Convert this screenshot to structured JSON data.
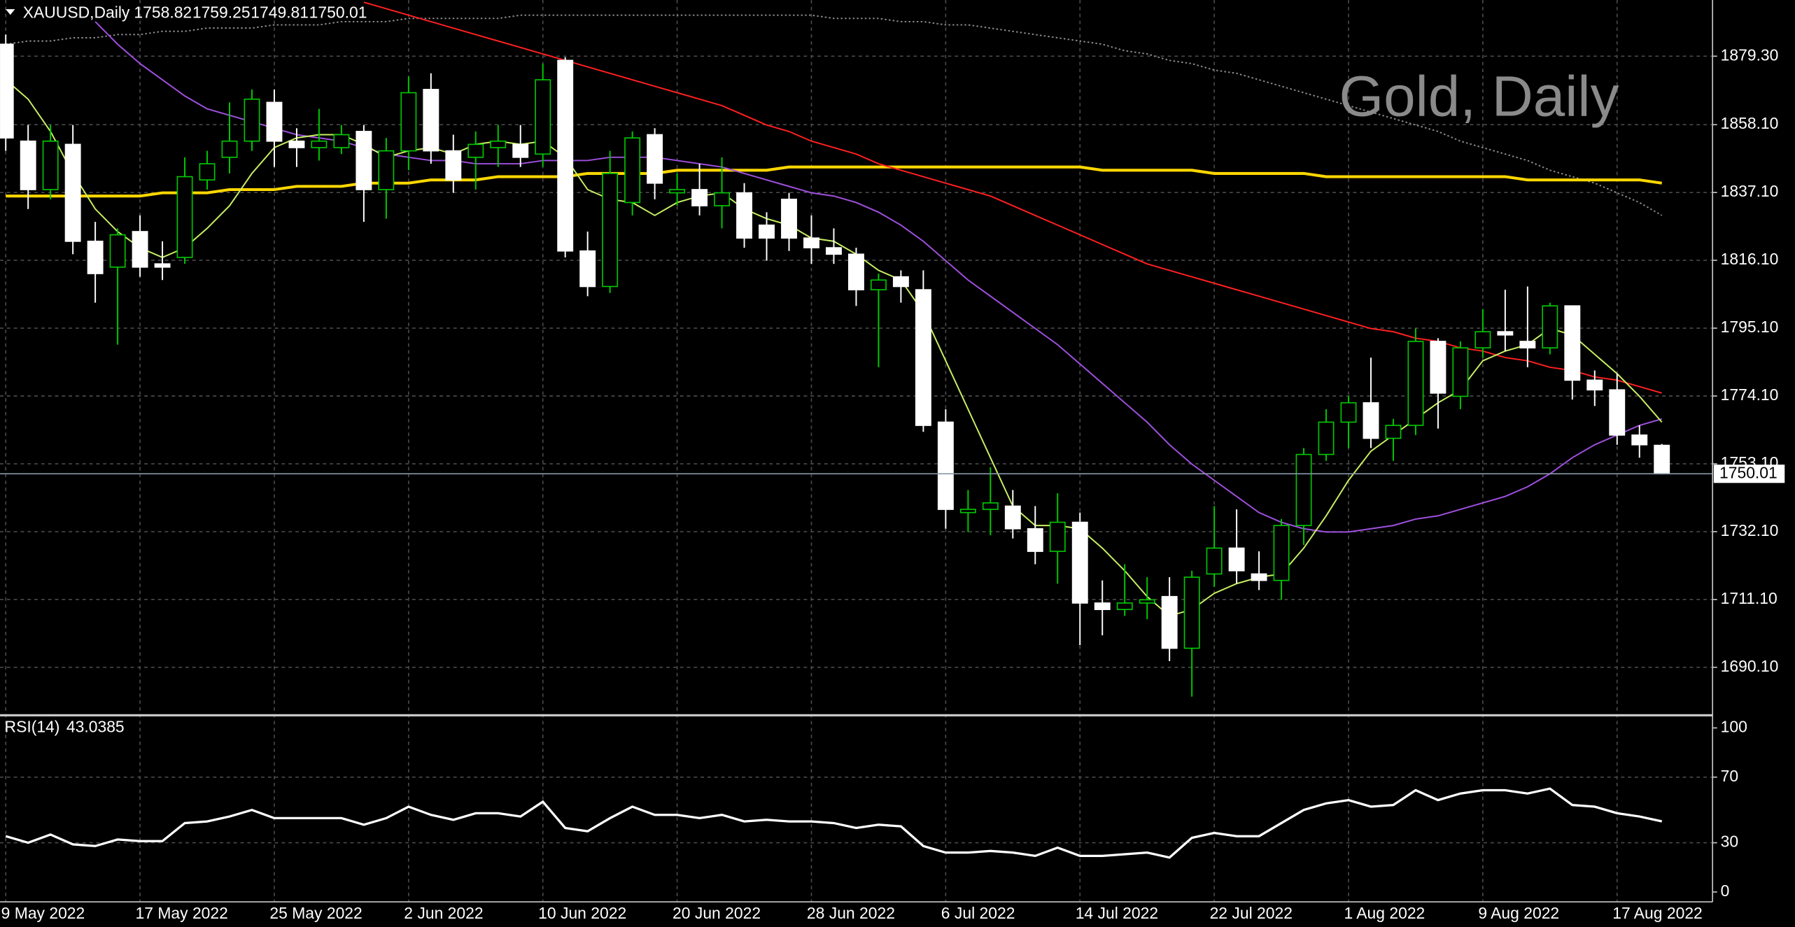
{
  "chart_data": [
    {
      "type": "candlestick",
      "title": "Gold, Daily",
      "symbol": "XAUUSD,Daily",
      "categories": [
        "9 May 2022",
        null,
        null,
        null,
        null,
        null,
        "17 May 2022",
        null,
        null,
        null,
        null,
        null,
        "25 May 2022",
        null,
        null,
        null,
        null,
        null,
        "2 Jun 2022",
        null,
        null,
        null,
        null,
        null,
        "10 Jun 2022",
        null,
        null,
        null,
        null,
        null,
        "20 Jun 2022",
        null,
        null,
        null,
        null,
        null,
        "28 Jun 2022",
        null,
        null,
        null,
        null,
        null,
        "6 Jul 2022",
        null,
        null,
        null,
        null,
        null,
        "14 Jul 2022",
        null,
        null,
        null,
        null,
        null,
        "22 Jul 2022",
        null,
        null,
        null,
        null,
        null,
        "1 Aug 2022",
        null,
        null,
        null,
        null,
        null,
        "9 Aug 2022",
        null,
        null,
        null,
        null,
        null,
        "17 Aug 2022",
        null,
        null
      ],
      "open": [
        1883,
        1853,
        1838,
        1852,
        1822,
        1814,
        1825,
        1815,
        1817,
        1841,
        1848,
        1853,
        1865,
        1853,
        1851,
        1851,
        1856,
        1838,
        1850,
        1869,
        1850,
        1848,
        1851,
        1852,
        1849,
        1878,
        1819,
        1808,
        1834,
        1855,
        1837,
        1838,
        1833,
        1837,
        1827,
        1835,
        1823,
        1820,
        1818,
        1807,
        1811,
        1807,
        1766,
        1738,
        1739,
        1740,
        1733,
        1726,
        1735,
        1710,
        1708,
        1710,
        1712,
        1696,
        1719,
        1727,
        1719,
        1717,
        1734,
        1756,
        1766,
        1772,
        1761,
        1765,
        1791,
        1774,
        1789,
        1794,
        1791,
        1789,
        1802,
        1779,
        1776,
        1762,
        1758.82
      ],
      "high": [
        1886,
        1858,
        1858,
        1858,
        1828,
        1826,
        1830,
        1822,
        1848,
        1850,
        1865,
        1869,
        1869,
        1857,
        1863,
        1858,
        1858,
        1854,
        1873,
        1874,
        1855,
        1856,
        1858,
        1858,
        1877,
        1879,
        1825,
        1850,
        1856,
        1857,
        1843,
        1846,
        1848,
        1840,
        1831,
        1837,
        1830,
        1826,
        1820,
        1812,
        1813,
        1813,
        1770,
        1745,
        1752,
        1745,
        1740,
        1744,
        1738,
        1717,
        1722,
        1718,
        1718,
        1720,
        1740,
        1739,
        1726,
        1736,
        1758,
        1770,
        1774,
        1786,
        1767,
        1795,
        1792,
        1791,
        1801,
        1807,
        1808,
        1803,
        1802,
        1782,
        1781,
        1765,
        1759.25
      ],
      "low": [
        1850,
        1832,
        1835,
        1818,
        1803,
        1790,
        1811,
        1810,
        1815,
        1838,
        1843,
        1850,
        1845,
        1845,
        1847,
        1849,
        1828,
        1829,
        1844,
        1846,
        1837,
        1838,
        1845,
        1845,
        1845,
        1817,
        1805,
        1806,
        1830,
        1835,
        1833,
        1830,
        1826,
        1820,
        1816,
        1819,
        1815,
        1815,
        1802,
        1783,
        1803,
        1763,
        1733,
        1732,
        1731,
        1730,
        1722,
        1716,
        1697,
        1700,
        1706,
        1705,
        1692,
        1681,
        1715,
        1716,
        1714,
        1711,
        1728,
        1754,
        1758,
        1758,
        1754,
        1762,
        1764,
        1770,
        1786,
        1788,
        1783,
        1787,
        1773,
        1771,
        1759,
        1755,
        1749.81
      ],
      "close": [
        1854,
        1838,
        1853,
        1822,
        1812,
        1824,
        1814,
        1814,
        1842,
        1846,
        1853,
        1866,
        1853,
        1851,
        1853,
        1855,
        1838,
        1850,
        1868,
        1850,
        1841,
        1852,
        1853,
        1848,
        1872,
        1819,
        1808,
        1843,
        1854,
        1840,
        1838,
        1833,
        1837,
        1823,
        1823,
        1823,
        1820,
        1818,
        1807,
        1810,
        1808,
        1765,
        1739,
        1739,
        1741,
        1733,
        1726,
        1735,
        1710,
        1708,
        1710,
        1711,
        1696,
        1718,
        1727,
        1720,
        1717,
        1734,
        1756,
        1766,
        1772,
        1761,
        1765,
        1791,
        1775,
        1789,
        1794,
        1793,
        1789,
        1802,
        1779,
        1776,
        1762,
        1759,
        1750.01
      ],
      "up_color": "#00c800",
      "down_color": "#ffffff",
      "overlays": [
        {
          "color": "#8c8c8c",
          "style": "dotted",
          "values": [
            1883,
            1884,
            1884,
            1885,
            1885,
            1886,
            1886,
            1887,
            1887,
            1888,
            1888,
            1888,
            1889,
            1889,
            1889,
            1890,
            1890,
            1890,
            1891,
            1891,
            1891,
            1891,
            1891,
            1892,
            1892,
            1892,
            1892,
            1892,
            1892,
            1892,
            1892,
            1892,
            1892,
            1892,
            1892,
            1892,
            1892,
            1891,
            1891,
            1891,
            1890,
            1890,
            1889,
            1889,
            1888,
            1887,
            1886,
            1885,
            1884,
            1883,
            1881,
            1880,
            1878,
            1877,
            1875,
            1874,
            1872,
            1870,
            1868,
            1866,
            1864,
            1862,
            1860,
            1858,
            1856,
            1853,
            1851,
            1849,
            1847,
            1844,
            1842,
            1840,
            1837,
            1834,
            1830
          ]
        },
        {
          "color": "#ffd700",
          "style": "solid",
          "values": [
            1836,
            1836,
            1836,
            1836,
            1836,
            1836,
            1836,
            1837,
            1837,
            1837,
            1838,
            1838,
            1838,
            1839,
            1839,
            1839,
            1840,
            1840,
            1840,
            1841,
            1841,
            1841,
            1842,
            1842,
            1842,
            1842,
            1843,
            1843,
            1843,
            1843,
            1844,
            1844,
            1844,
            1844,
            1844,
            1845,
            1845,
            1845,
            1845,
            1845,
            1845,
            1845,
            1845,
            1845,
            1845,
            1845,
            1845,
            1845,
            1845,
            1844,
            1844,
            1844,
            1844,
            1844,
            1843,
            1843,
            1843,
            1843,
            1843,
            1842,
            1842,
            1842,
            1842,
            1842,
            1842,
            1842,
            1842,
            1842,
            1841,
            1841,
            1841,
            1841,
            1841,
            1841,
            1840
          ]
        },
        {
          "color": "#ff2020",
          "style": "solid",
          "values": [
            null,
            null,
            null,
            null,
            null,
            null,
            null,
            null,
            null,
            null,
            null,
            null,
            null,
            null,
            null,
            null,
            1896,
            1894,
            1892,
            1890,
            1888,
            1886,
            1884,
            1882,
            1880,
            1878,
            1876,
            1874,
            1872,
            1870,
            1868,
            1866,
            1864,
            1861,
            1858,
            1856,
            1853,
            1851,
            1849,
            1846,
            1844,
            1842,
            1840,
            1838,
            1836,
            1833,
            1830,
            1827,
            1824,
            1821,
            1818,
            1815,
            1813,
            1811,
            1809,
            1807,
            1805,
            1803,
            1801,
            1799,
            1797,
            1795,
            1794,
            1792,
            1791,
            1789,
            1788,
            1786,
            1785,
            1783,
            1782,
            1780,
            1779,
            1777,
            1775
          ]
        },
        {
          "color": "#a050e0",
          "style": "solid",
          "values": [
            null,
            null,
            null,
            null,
            1890,
            1883,
            1877,
            1872,
            1867,
            1863,
            1861,
            1859,
            1857,
            1855,
            1854,
            1853,
            1851,
            1849,
            1848,
            1847,
            1847,
            1846,
            1846,
            1846,
            1847,
            1847,
            1847,
            1848,
            1848,
            1848,
            1847,
            1846,
            1845,
            1843,
            1841,
            1839,
            1837,
            1836,
            1834,
            1831,
            1827,
            1822,
            1816,
            1810,
            1805,
            1800,
            1795,
            1790,
            1784,
            1778,
            1772,
            1766,
            1759,
            1753,
            1748,
            1743,
            1738,
            1735,
            1733,
            1732,
            1732,
            1733,
            1734,
            1736,
            1737,
            1739,
            1741,
            1743,
            1746,
            1750,
            1755,
            1759,
            1762,
            1765,
            1767
          ]
        },
        {
          "color": "#c8f064",
          "style": "solid",
          "values": [
            1872,
            1866,
            1856,
            1843,
            1832,
            1825,
            1820,
            1817,
            1820,
            1826,
            1833,
            1843,
            1851,
            1854,
            1855,
            1855,
            1852,
            1848,
            1850,
            1851,
            1849,
            1852,
            1853,
            1852,
            1853,
            1848,
            1838,
            1835,
            1834,
            1830,
            1834,
            1836,
            1837,
            1832,
            1829,
            1827,
            1823,
            1822,
            1818,
            1813,
            1810,
            1800,
            1785,
            1770,
            1755,
            1740,
            1734,
            1734,
            1733,
            1727,
            1720,
            1712,
            1706,
            1708,
            1713,
            1716,
            1718,
            1719,
            1727,
            1737,
            1748,
            1757,
            1762,
            1767,
            1772,
            1776,
            1785,
            1788,
            1790,
            1795,
            1793,
            1787,
            1781,
            1774,
            1766
          ]
        }
      ],
      "ylim": [
        1675.6,
        1896.7
      ],
      "yticks": [
        {
          "value": 1690.1,
          "label": "1690.10"
        },
        {
          "value": 1711.1,
          "label": "1711.10"
        },
        {
          "value": 1732.1,
          "label": "1732.10"
        },
        {
          "value": 1753.1,
          "label": "1753.10"
        },
        {
          "value": 1774.1,
          "label": "1774.10"
        },
        {
          "value": 1795.1,
          "label": "1795.10"
        },
        {
          "value": 1816.1,
          "label": "1816.10"
        },
        {
          "value": 1837.1,
          "label": "1837.10"
        },
        {
          "value": 1858.1,
          "label": "1858.10"
        },
        {
          "value": 1879.3,
          "label": "1879.30"
        }
      ],
      "grid": true
    },
    {
      "type": "line",
      "label": "RSI(14)",
      "color": "#ffffff",
      "values": [
        34,
        30,
        35,
        29,
        28,
        32,
        31,
        31,
        42,
        43,
        46,
        50,
        45,
        45,
        45,
        45,
        41,
        45,
        52,
        47,
        44,
        48,
        48,
        46,
        55,
        39,
        37,
        45,
        52,
        47,
        47,
        45,
        47,
        43,
        44,
        43,
        43,
        42,
        39,
        41,
        40,
        28,
        24,
        24,
        25,
        24,
        22,
        27,
        22,
        22,
        23,
        24,
        21,
        33,
        36,
        34,
        34,
        42,
        50,
        54,
        56,
        52,
        53,
        62,
        56,
        60,
        62,
        62,
        60,
        63,
        53,
        52,
        48,
        46,
        43.0385
      ],
      "ylim": [
        -6,
        107
      ],
      "yticks": [
        0,
        30,
        70,
        100
      ],
      "grid": true
    }
  ]
}
